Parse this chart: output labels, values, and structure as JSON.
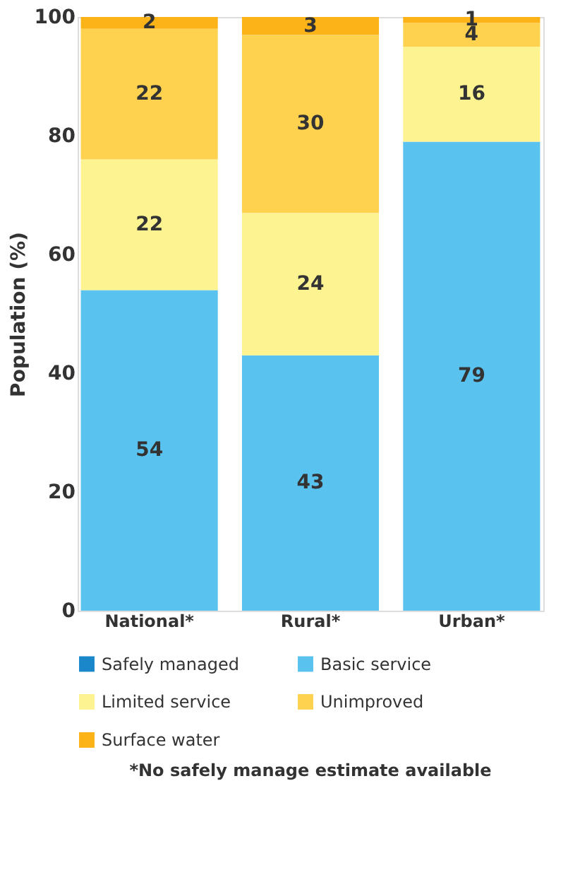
{
  "chart_data": {
    "type": "bar",
    "stacked": true,
    "ylabel": "Population (%)",
    "categories": [
      "National*",
      "Rural*",
      "Urban*"
    ],
    "series": [
      {
        "name": "Safely managed",
        "color": "#1b87cb",
        "values": [
          null,
          null,
          null
        ]
      },
      {
        "name": "Basic service",
        "color": "#5ac2ef",
        "values": [
          54,
          43,
          79
        ]
      },
      {
        "name": "Limited service",
        "color": "#fdf391",
        "values": [
          22,
          24,
          16
        ]
      },
      {
        "name": "Unimproved",
        "color": "#fed24f",
        "values": [
          22,
          30,
          4
        ]
      },
      {
        "name": "Surface water",
        "color": "#fbb317",
        "values": [
          2,
          3,
          1
        ]
      }
    ],
    "ylim": [
      0,
      100
    ],
    "yticks": [
      0,
      20,
      40,
      60,
      80,
      100
    ],
    "grid": false,
    "data_labels": true,
    "legend": "bottom",
    "annotations": [
      "*No safely manage estimate available"
    ]
  }
}
